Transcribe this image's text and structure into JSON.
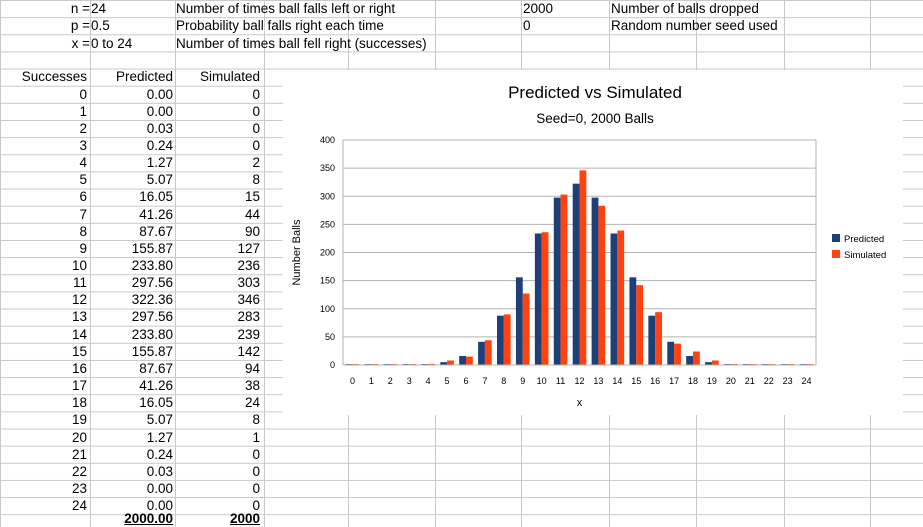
{
  "params": [
    {
      "label": "n =",
      "value": "24",
      "desc": "Number of times ball falls left or right",
      "extra_value": "2000",
      "extra_desc": "Number of balls dropped"
    },
    {
      "label": "p =",
      "value": "0.5",
      "desc": "Probability ball falls right each time",
      "extra_value": "0",
      "extra_desc": "Random number seed used"
    },
    {
      "label": "x =",
      "value": "0 to 24",
      "desc": "Number of times ball fell right (successes)",
      "extra_value": "",
      "extra_desc": ""
    }
  ],
  "table": {
    "headers": [
      "Successes",
      "Predicted",
      "Simulated"
    ],
    "rows": [
      [
        "0",
        "0.00",
        "0"
      ],
      [
        "1",
        "0.00",
        "0"
      ],
      [
        "2",
        "0.03",
        "0"
      ],
      [
        "3",
        "0.24",
        "0"
      ],
      [
        "4",
        "1.27",
        "2"
      ],
      [
        "5",
        "5.07",
        "8"
      ],
      [
        "6",
        "16.05",
        "15"
      ],
      [
        "7",
        "41.26",
        "44"
      ],
      [
        "8",
        "87.67",
        "90"
      ],
      [
        "9",
        "155.87",
        "127"
      ],
      [
        "10",
        "233.80",
        "236"
      ],
      [
        "11",
        "297.56",
        "303"
      ],
      [
        "12",
        "322.36",
        "346"
      ],
      [
        "13",
        "297.56",
        "283"
      ],
      [
        "14",
        "233.80",
        "239"
      ],
      [
        "15",
        "155.87",
        "142"
      ],
      [
        "16",
        "87.67",
        "94"
      ],
      [
        "17",
        "41.26",
        "38"
      ],
      [
        "18",
        "16.05",
        "24"
      ],
      [
        "19",
        "5.07",
        "8"
      ],
      [
        "20",
        "1.27",
        "1"
      ],
      [
        "21",
        "0.24",
        "0"
      ],
      [
        "22",
        "0.03",
        "0"
      ],
      [
        "23",
        "0.00",
        "0"
      ],
      [
        "24",
        "0.00",
        "0"
      ]
    ],
    "totals": [
      "",
      "2000.00",
      "2000"
    ]
  },
  "chart_data": {
    "type": "bar",
    "title": "Predicted vs Simulated",
    "subtitle": "Seed=0, 2000 Balls",
    "xlabel": "x",
    "ylabel": "Number Balls",
    "ylim": [
      0,
      400
    ],
    "yticks": [
      "0",
      "50",
      "100",
      "150",
      "200",
      "250",
      "300",
      "350",
      "400"
    ],
    "categories": [
      "0",
      "1",
      "2",
      "3",
      "4",
      "5",
      "6",
      "7",
      "8",
      "9",
      "10",
      "11",
      "12",
      "13",
      "14",
      "15",
      "16",
      "17",
      "18",
      "19",
      "20",
      "21",
      "22",
      "23",
      "24"
    ],
    "series": [
      {
        "name": "Predicted",
        "color": "#1f3f78",
        "values": [
          0,
          0,
          0.03,
          0.24,
          1.27,
          5.07,
          16.05,
          41.26,
          87.67,
          155.87,
          233.8,
          297.56,
          322.36,
          297.56,
          233.8,
          155.87,
          87.67,
          41.26,
          16.05,
          5.07,
          1.27,
          0.24,
          0.03,
          0,
          0
        ]
      },
      {
        "name": "Simulated",
        "color": "#ff420e",
        "values": [
          0,
          0,
          0,
          0,
          2,
          8,
          15,
          44,
          90,
          127,
          236,
          303,
          346,
          283,
          239,
          142,
          94,
          38,
          24,
          8,
          1,
          0,
          0,
          0,
          0
        ]
      }
    ],
    "grid": true,
    "legend": "right"
  }
}
